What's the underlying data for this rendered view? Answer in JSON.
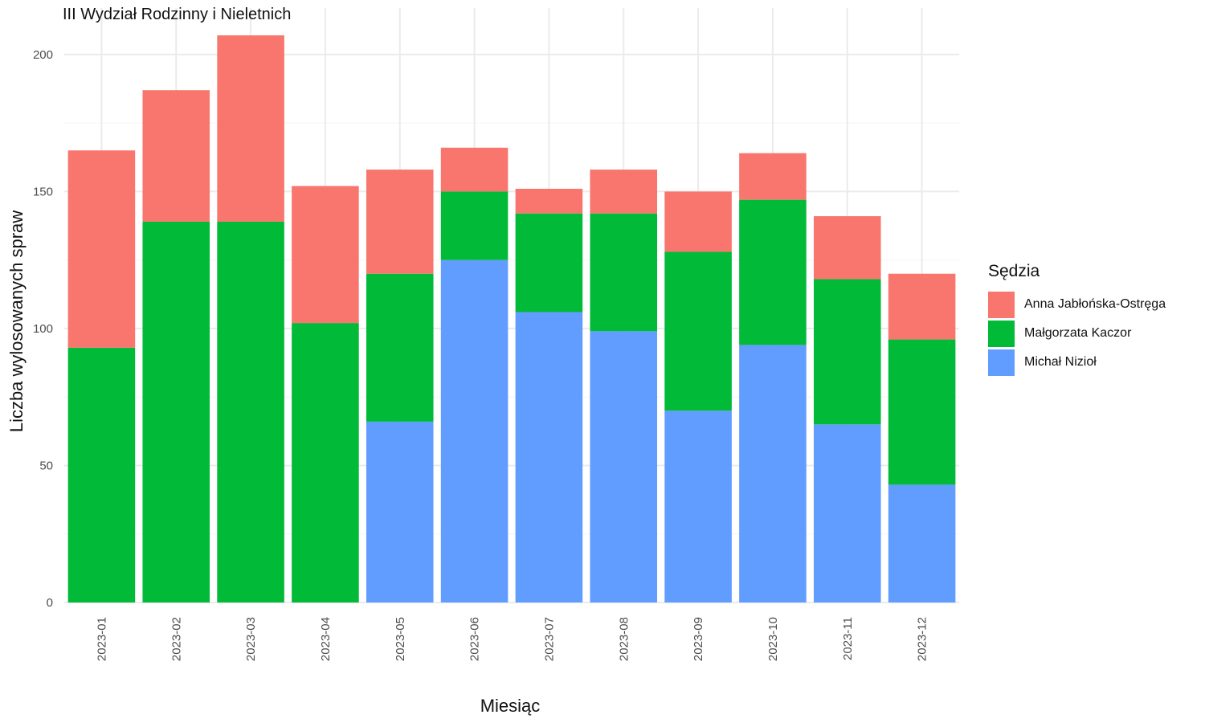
{
  "chart_data": {
    "type": "bar",
    "stacked": true,
    "title": "III Wydział Rodzinny i Nieletnich",
    "xlabel": "Miesiąc",
    "ylabel": "Liczba wylosowanych spraw",
    "ylim": [
      0,
      207
    ],
    "yticks": [
      0,
      50,
      100,
      150,
      200
    ],
    "grid": true,
    "legend_title": "Sędzia",
    "legend_position": "right",
    "categories": [
      "2023-01",
      "2023-02",
      "2023-03",
      "2023-04",
      "2023-05",
      "2023-06",
      "2023-07",
      "2023-08",
      "2023-09",
      "2023-10",
      "2023-11",
      "2023-12"
    ],
    "series": [
      {
        "name": "Michał Nizioł",
        "color": "#619CFF",
        "values": [
          0,
          0,
          0,
          0,
          66,
          125,
          106,
          99,
          70,
          94,
          65,
          43
        ]
      },
      {
        "name": "Małgorzata Kaczor",
        "color": "#00BA38",
        "values": [
          93,
          139,
          139,
          102,
          54,
          25,
          36,
          43,
          58,
          53,
          53,
          53
        ]
      },
      {
        "name": "Anna Jabłońska-Ostręga",
        "color": "#F8766D",
        "values": [
          72,
          48,
          68,
          50,
          38,
          16,
          9,
          16,
          22,
          17,
          23,
          24
        ]
      }
    ],
    "legend_order": [
      "Anna Jabłońska-Ostręga",
      "Małgorzata Kaczor",
      "Michał Nizioł"
    ]
  }
}
